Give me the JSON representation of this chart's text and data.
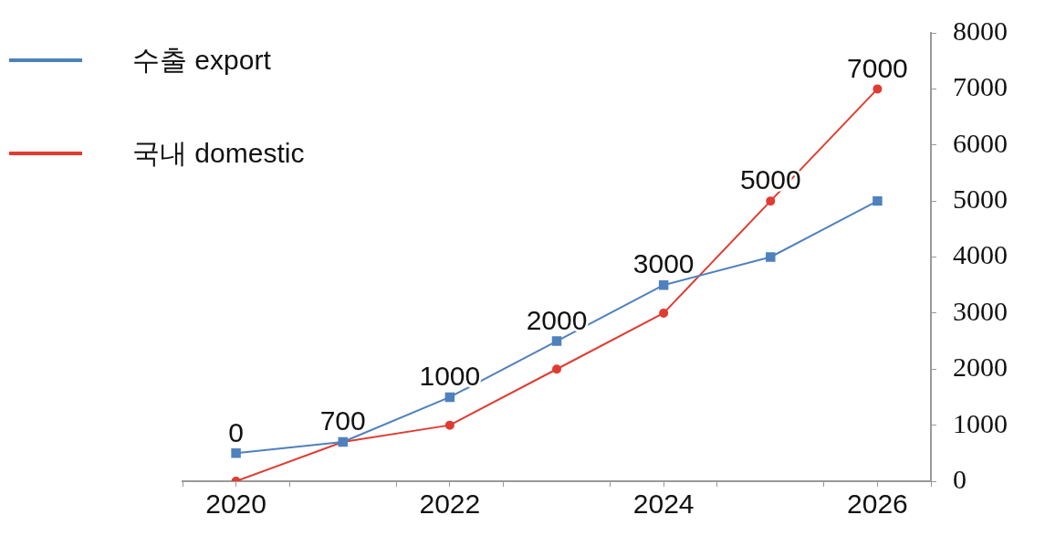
{
  "chart_data": {
    "type": "line",
    "x": [
      2020,
      2021,
      2022,
      2023,
      2024,
      2025,
      2026
    ],
    "series": [
      {
        "name": "수출 export",
        "color": "#4f81bd",
        "marker": "square",
        "values": [
          500,
          700,
          1500,
          2500,
          3500,
          4000,
          5000
        ]
      },
      {
        "name": "국내 domestic",
        "color": "#e03c31",
        "marker": "circle",
        "values": [
          0,
          700,
          1000,
          2000,
          3000,
          5000,
          7000
        ],
        "value_labels": [
          "0",
          "700",
          "1000",
          "2000",
          "3000",
          "5000",
          "7000"
        ]
      }
    ],
    "xlim": [
      2019.5,
      2026.5
    ],
    "xticks": [
      {
        "value": 2019.5,
        "label": null
      },
      2020,
      {
        "value": 2020.5,
        "label": null
      },
      {
        "value": 2021.5,
        "label": null
      },
      2022,
      {
        "value": 2022.5,
        "label": null
      },
      {
        "value": 2023.5,
        "label": null
      },
      2024,
      {
        "value": 2024.5,
        "label": null
      },
      {
        "value": 2025.5,
        "label": null
      },
      2026,
      {
        "value": 2026.5,
        "label": null
      }
    ],
    "ylim": [
      0,
      8000
    ],
    "yticks": [
      0,
      1000,
      2000,
      3000,
      4000,
      5000,
      6000,
      7000,
      8000
    ],
    "grid": false,
    "legend": "top left",
    "line_style": "solid"
  }
}
